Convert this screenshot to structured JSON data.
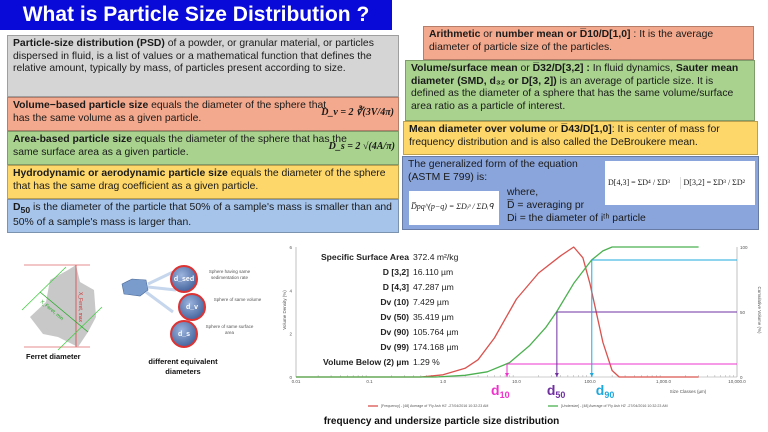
{
  "title": "What is Particle Size Distribution ?",
  "left_boxes": {
    "psd": {
      "bold": "Particle-size distribution (PSD)",
      "text": " of a powder, or granular material, or particles dispersed in fluid, is a list of values or a mathematical function that defines the relative amount, typically by mass, of particles present according to size."
    },
    "volume": {
      "bold": "Volume−based particle size",
      "text": " equals the diameter of the sphere that has the same volume as a given particle.",
      "formula": "D_v = 2 ∛(3V/4π)"
    },
    "area": {
      "bold": "Area-based particle size",
      "text": " equals the diameter of the sphere that has the same surface area as a given particle.",
      "formula": "D_s = 2 √(4A/π)"
    },
    "hydro": {
      "bold": "Hydrodynamic or aerodynamic particle size",
      "text": " equals the diameter of the sphere that has the same drag coefficient as a given particle."
    },
    "d50": {
      "bold": "D",
      "sub": "50",
      "text": " is the diameter of the particle that 50% of a sample's mass is smaller than and 50% of a sample's mass is larger than."
    }
  },
  "right_boxes": {
    "arith": {
      "b1": "Arithmetic",
      "t1": " or ",
      "b2": "number mean or D̅10/D[1,0]",
      "t2": " : It is the average diameter of particle size of the particles."
    },
    "volsurf": {
      "b1": "Volume/surface mean",
      "t1": " or ",
      "b2": "D̅32/D[3,2] :",
      "t2": " In fluid dynamics, ",
      "b3": "Sauter mean diameter (SMD, d₃₂ or D[3, 2])",
      "t3": " is an average of particle size. It is defined as the diameter of a sphere that has the same volume/surface area ratio as a particle of interest."
    },
    "meanvol": {
      "b1": "Mean diameter over volume",
      "t1": " or ",
      "b2": "D̅43/D[1,0]",
      "t2": ":  It is center of mass for frequency distribution and is also called the DeBroukere mean."
    },
    "general": {
      "line1": "The generalized form of the equation",
      "line2": "(ASTM E 799) is:",
      "where": "where,",
      "avg": "D̅ = averaging pr",
      "di": "Di = the diameter of iᵗʰ particle",
      "formula_general": "D̅pq^(p−q) = ΣDᵢᵖ / ΣDᵢᑫ",
      "formula_43": "D[4,3] = ΣD⁴ / ΣD³",
      "formula_32": "D[3,2] = ΣD³ / ΣD²"
    }
  },
  "illustrations": {
    "ferret_label": "Ferret diameter",
    "ferret_max": "X_Feret, max",
    "ferret_min": "X_Feret, min",
    "equiv_label": "different equivalent diameters",
    "spheres": [
      {
        "symbol": "d_sed",
        "desc": "Sphere having same sedimentation rate"
      },
      {
        "symbol": "d_v",
        "desc": "Sphere of same volume"
      },
      {
        "symbol": "d_s",
        "desc": "Sphere of same surface area"
      }
    ]
  },
  "stats": [
    {
      "k": "Specific Surface Area",
      "v": "372.4 m²/kg"
    },
    {
      "k": "D [3,2]",
      "v": "16.110 µm"
    },
    {
      "k": "D [4,3]",
      "v": "47.287 µm"
    },
    {
      "k": "Dv (10)",
      "v": "7.429 µm"
    },
    {
      "k": "Dv (50)",
      "v": "35.419 µm"
    },
    {
      "k": "Dv (90)",
      "v": "105.764 µm"
    },
    {
      "k": "Dv (99)",
      "v": "174.168 µm"
    },
    {
      "k": "Volume Below (2) µm",
      "v": "1.29 %"
    }
  ],
  "caption": "frequency and undersize particle size distribution",
  "chart_data": {
    "type": "line",
    "xlabel": "Size Classes (µm)",
    "ylabel": "Volume Density (%)",
    "y2label": "Cumulative Volume (%)",
    "x_scale": "log",
    "xlim": [
      0.01,
      10000
    ],
    "ylim": [
      0,
      6
    ],
    "y2lim": [
      0,
      100
    ],
    "x_ticks": [
      "0.01",
      "0.1",
      "1.0",
      "10.0",
      "100.0",
      "1,000.0",
      "10,000.0"
    ],
    "y_ticks": [
      "0",
      "2",
      "4",
      "6"
    ],
    "y2_ticks": [
      "0",
      "50",
      "100"
    ],
    "series": [
      {
        "name": "[Frequency] - [48] Average of 'Fly Ash H2' -27/04/2016 10:32:23 AM",
        "color": "#d9534f",
        "axis": "left",
        "x": [
          0.01,
          0.5,
          1,
          2,
          3,
          5,
          10,
          20,
          40,
          60,
          80,
          100,
          150,
          200,
          250,
          3000
        ],
        "y": [
          0,
          0,
          0.1,
          0.4,
          0.8,
          1.8,
          3.6,
          4.8,
          5.6,
          6.0,
          5.5,
          4.3,
          1.6,
          0.3,
          0,
          0
        ]
      },
      {
        "name": "[Undersize] - [48] Average of 'Fly Ash H2' -27/04/2016 10:32:23 AM",
        "color": "#4cb050",
        "axis": "right",
        "x": [
          0.01,
          0.8,
          2,
          4,
          8,
          15,
          25,
          35,
          60,
          105,
          150,
          200,
          3000
        ],
        "y": [
          0,
          0,
          1.3,
          4,
          11,
          24,
          38,
          50,
          72,
          90,
          97,
          100,
          100
        ]
      }
    ],
    "markers": [
      {
        "label": "d10",
        "sub": "10",
        "x": 7.429,
        "y2": 10,
        "color": "#ee33cc"
      },
      {
        "label": "d50",
        "sub": "50",
        "x": 35.419,
        "y2": 50,
        "color": "#7030a0"
      },
      {
        "label": "d90",
        "sub": "90",
        "x": 105.764,
        "y2": 90,
        "color": "#1fa8dc"
      }
    ]
  }
}
